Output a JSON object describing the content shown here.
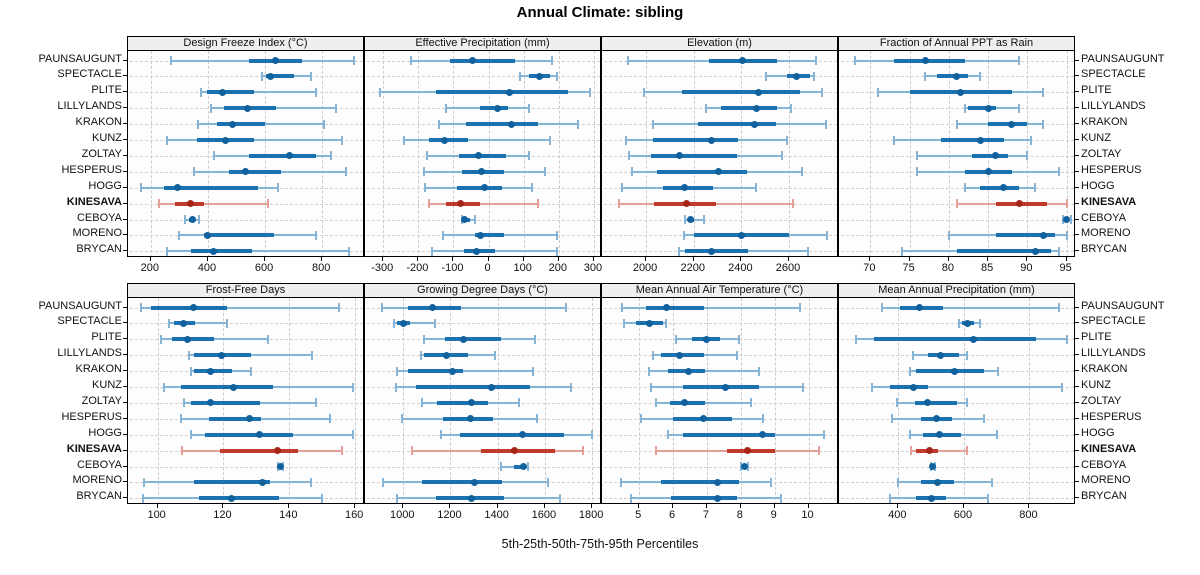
{
  "title": "Annual Climate: sibling",
  "axis_label": "5th-25th-50th-75th-95th Percentiles",
  "percentiles": [
    5,
    25,
    50,
    75,
    95
  ],
  "sites": [
    "PAUNSAUGUNT",
    "SPECTACLE",
    "PLITE",
    "LILLYLANDS",
    "KRAKON",
    "KUNZ",
    "ZOLTAY",
    "HESPERUS",
    "HOGG",
    "KINESAVA",
    "CEBOYA",
    "MORENO",
    "BRYCAN"
  ],
  "highlight_site": "KINESAVA",
  "colors": {
    "blue_light": "#85b4d7",
    "blue": "#1b72b0",
    "blue_dot": "#10619c",
    "red_light": "#e59f99",
    "red": "#bf3a2c",
    "red_dot": "#a52619",
    "strip_bg": "#efefef",
    "grid": "#d0d0d0",
    "border": "#000000"
  },
  "chart_data": [
    {
      "type": "interval",
      "title": "Design Freeze Index (°C)",
      "row": 0,
      "col": 0,
      "xlim": [
        120,
        950
      ],
      "ticks": [
        200,
        400,
        600,
        800
      ],
      "values": [
        [
          270,
          545,
          635,
          730,
          910
        ],
        [
          590,
          605,
          620,
          700,
          760
        ],
        [
          375,
          395,
          450,
          560,
          780
        ],
        [
          410,
          455,
          540,
          640,
          850
        ],
        [
          365,
          430,
          485,
          600,
          805
        ],
        [
          255,
          360,
          460,
          560,
          870
        ],
        [
          420,
          545,
          685,
          780,
          830
        ],
        [
          350,
          475,
          530,
          655,
          885
        ],
        [
          165,
          245,
          295,
          575,
          645
        ],
        [
          230,
          285,
          340,
          385,
          610
        ],
        [
          320,
          335,
          345,
          355,
          370
        ],
        [
          300,
          385,
          400,
          630,
          780
        ],
        [
          255,
          340,
          420,
          555,
          895
        ]
      ]
    },
    {
      "type": "interval",
      "title": "Effective Precipitation (mm)",
      "row": 0,
      "col": 1,
      "xlim": [
        -352,
        323
      ],
      "ticks": [
        -300,
        -200,
        -100,
        0,
        100,
        200,
        300
      ],
      "values": [
        [
          -220,
          -110,
          -45,
          75,
          180
        ],
        [
          90,
          115,
          145,
          175,
          195
        ],
        [
          -310,
          -150,
          60,
          225,
          290
        ],
        [
          -120,
          -25,
          25,
          55,
          115
        ],
        [
          -140,
          -65,
          65,
          140,
          255
        ],
        [
          -240,
          -170,
          -125,
          -60,
          175
        ],
        [
          -175,
          -85,
          -30,
          50,
          115
        ],
        [
          -185,
          -75,
          -20,
          45,
          160
        ],
        [
          -180,
          -90,
          -13,
          38,
          125
        ],
        [
          -170,
          -122,
          -80,
          -25,
          140
        ],
        [
          -76,
          -72,
          -68,
          -52,
          -38
        ],
        [
          -130,
          -40,
          -23,
          45,
          195
        ],
        [
          -160,
          -70,
          -35,
          17,
          195
        ]
      ]
    },
    {
      "type": "interval",
      "title": "Elevation (m)",
      "row": 0,
      "col": 2,
      "xlim": [
        1815,
        2810
      ],
      "ticks": [
        2000,
        2200,
        2400,
        2600
      ],
      "values": [
        [
          1925,
          2265,
          2405,
          2550,
          2715
        ],
        [
          2505,
          2590,
          2630,
          2690,
          2705
        ],
        [
          1990,
          2150,
          2470,
          2645,
          2740
        ],
        [
          2250,
          2315,
          2465,
          2550,
          2610
        ],
        [
          2030,
          2220,
          2455,
          2545,
          2755
        ],
        [
          1915,
          2030,
          2275,
          2385,
          2590
        ],
        [
          1930,
          2020,
          2140,
          2380,
          2570
        ],
        [
          1940,
          2045,
          2305,
          2425,
          2655
        ],
        [
          1900,
          2070,
          2160,
          2280,
          2460
        ],
        [
          1885,
          2035,
          2170,
          2295,
          2615
        ],
        [
          2165,
          2175,
          2185,
          2200,
          2245
        ],
        [
          2160,
          2200,
          2400,
          2600,
          2760
        ],
        [
          2140,
          2165,
          2275,
          2430,
          2680
        ]
      ]
    },
    {
      "type": "interval",
      "title": "Fraction of Annual PPT as Rain",
      "row": 0,
      "col": 3,
      "xlim": [
        66,
        96.2
      ],
      "ticks": [
        70,
        75,
        80,
        85,
        90,
        95
      ],
      "values": [
        [
          68,
          73,
          77,
          82,
          89
        ],
        [
          77,
          78.5,
          81,
          82.5,
          84
        ],
        [
          71,
          75,
          81.5,
          88,
          92
        ],
        [
          82,
          82.5,
          85,
          86,
          89
        ],
        [
          81,
          85,
          88,
          90,
          92
        ],
        [
          73,
          79,
          84,
          87,
          90.5
        ],
        [
          76,
          83,
          86,
          87.5,
          90
        ],
        [
          76,
          82,
          85,
          88,
          94
        ],
        [
          82,
          84,
          87,
          89,
          91
        ],
        [
          81,
          86,
          89,
          92.5,
          95
        ],
        [
          94.5,
          94.8,
          95,
          95.3,
          95.6
        ],
        [
          80,
          86,
          92,
          93.5,
          95
        ],
        [
          74,
          81,
          91,
          93,
          94
        ]
      ]
    },
    {
      "type": "interval",
      "title": "Frost-Free Days",
      "row": 1,
      "col": 0,
      "xlim": [
        91,
        163
      ],
      "ticks": [
        100,
        120,
        140,
        160
      ],
      "values": [
        [
          95,
          98,
          111,
          121,
          155
        ],
        [
          103.5,
          105,
          108,
          111.5,
          121
        ],
        [
          101,
          104.5,
          109,
          117,
          133.5
        ],
        [
          109.5,
          111,
          119.5,
          128.5,
          147
        ],
        [
          110,
          111,
          116,
          122.5,
          128.5
        ],
        [
          102,
          107,
          123,
          135,
          159.5
        ],
        [
          108,
          110,
          116,
          131,
          148
        ],
        [
          107,
          115.5,
          128,
          131.5,
          152.5
        ],
        [
          110,
          114.5,
          131,
          141,
          159.5
        ],
        [
          107.5,
          119,
          136.5,
          142.5,
          156
        ],
        [
          136.5,
          137,
          137.2,
          137.5,
          138
        ],
        [
          96,
          111,
          132,
          134,
          146.5
        ],
        [
          95.5,
          112.5,
          122.5,
          137,
          150
        ]
      ]
    },
    {
      "type": "interval",
      "title": "Growing Degree Days (°C)",
      "row": 1,
      "col": 1,
      "xlim": [
        838,
        1842
      ],
      "ticks": [
        1000,
        1200,
        1400,
        1600,
        1800
      ],
      "values": [
        [
          910,
          1020,
          1125,
          1245,
          1690
        ],
        [
          960,
          975,
          1000,
          1030,
          1135
        ],
        [
          1090,
          1175,
          1255,
          1415,
          1560
        ],
        [
          1075,
          1090,
          1185,
          1275,
          1390
        ],
        [
          975,
          1020,
          1210,
          1255,
          1550
        ],
        [
          970,
          1055,
          1375,
          1535,
          1710
        ],
        [
          1080,
          1145,
          1290,
          1360,
          1490
        ],
        [
          995,
          1170,
          1285,
          1380,
          1565
        ],
        [
          1160,
          1240,
          1505,
          1680,
          1800
        ],
        [
          1035,
          1330,
          1470,
          1645,
          1760
        ],
        [
          1415,
          1470,
          1510,
          1520,
          1530
        ],
        [
          915,
          1080,
          1300,
          1420,
          1615
        ],
        [
          975,
          1140,
          1290,
          1425,
          1665
        ]
      ]
    },
    {
      "type": "interval",
      "title": "Mean Annual Air Temperature (°C)",
      "row": 1,
      "col": 2,
      "xlim": [
        3.9,
        10.9
      ],
      "ticks": [
        5,
        6,
        7,
        8,
        9,
        10
      ],
      "values": [
        [
          4.5,
          5.2,
          5.8,
          6.9,
          9.75
        ],
        [
          4.55,
          4.9,
          5.3,
          5.7,
          5.8
        ],
        [
          6.1,
          6.55,
          7.0,
          7.4,
          7.95
        ],
        [
          5.4,
          5.65,
          6.2,
          6.9,
          7.9
        ],
        [
          5.3,
          5.85,
          6.45,
          6.95,
          8.55
        ],
        [
          5.35,
          6.3,
          7.55,
          8.55,
          9.85
        ],
        [
          5.5,
          5.9,
          6.35,
          6.95,
          8.3
        ],
        [
          5.05,
          6.0,
          6.9,
          7.75,
          8.65
        ],
        [
          5.85,
          6.3,
          8.65,
          9.0,
          10.45
        ],
        [
          5.5,
          7.6,
          8.2,
          9.0,
          10.3
        ],
        [
          8.0,
          8.07,
          8.1,
          8.15,
          8.2
        ],
        [
          4.45,
          5.65,
          7.3,
          7.95,
          8.9
        ],
        [
          4.75,
          5.95,
          7.3,
          7.9,
          9.2
        ]
      ]
    },
    {
      "type": "interval",
      "title": "Mean Annual Precipitation (mm)",
      "row": 1,
      "col": 3,
      "xlim": [
        219,
        942
      ],
      "ticks": [
        400,
        600,
        800
      ],
      "values": [
        [
          350,
          405,
          465,
          535,
          890
        ],
        [
          585,
          595,
          611,
          630,
          650
        ],
        [
          270,
          325,
          630,
          820,
          915
        ],
        [
          445,
          490,
          530,
          585,
          610
        ],
        [
          435,
          455,
          570,
          660,
          705
        ],
        [
          320,
          375,
          445,
          490,
          900
        ],
        [
          395,
          450,
          490,
          580,
          610
        ],
        [
          380,
          470,
          515,
          565,
          660
        ],
        [
          435,
          475,
          525,
          590,
          700
        ],
        [
          440,
          455,
          495,
          520,
          610
        ],
        [
          500,
          503,
          505,
          508,
          512
        ],
        [
          400,
          470,
          520,
          570,
          685
        ],
        [
          375,
          455,
          500,
          545,
          675
        ]
      ]
    }
  ]
}
